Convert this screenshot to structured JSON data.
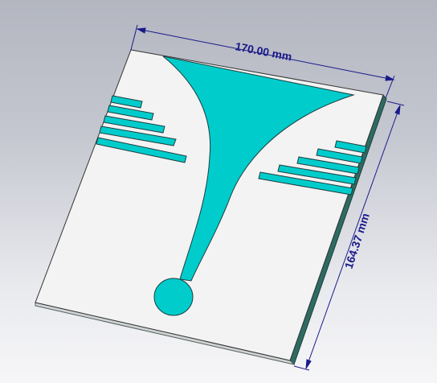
{
  "view": {
    "colors": {
      "background_top": "#b3b6c0",
      "background_bottom": "#f6f6f8",
      "substrate": "#f3f3f3",
      "substrate_edge": "#1f5f55",
      "metal": "#00cccc",
      "metal_outline": "#1f3d3d",
      "dimension": "#1a1a8a"
    }
  },
  "dimensions": {
    "width": {
      "label": "170.00 mm"
    },
    "height": {
      "label": "164.37 mm"
    }
  },
  "model": {
    "name": "substrate-with-flared-antenna",
    "left_strip_count": 5,
    "right_strip_count": 5
  }
}
